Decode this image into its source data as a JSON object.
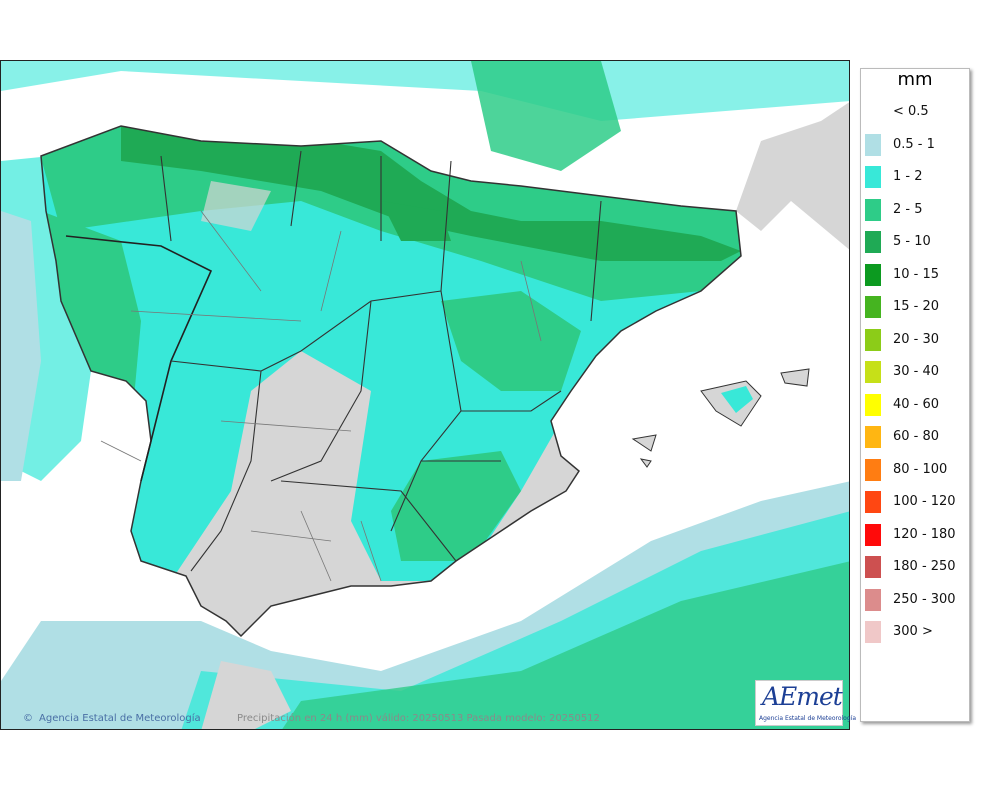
{
  "map": {
    "credit": "Agencia Estatal de Meteorología",
    "caption": "Precipitación en 24 h (mm) válido: 20250513 Pasada modelo: 20250512",
    "logo_text": "AEmet",
    "logo_subtext": "Agencia Estatal de Meteorología",
    "copyright_icon": "copyright-icon",
    "region": "Peninsula Iberica y Baleares",
    "colors": {
      "sea": "#ffffff",
      "land": "#d6d6d6",
      "border": "#333333"
    }
  },
  "legend": {
    "unit": "mm",
    "items": [
      {
        "label": "< 0.5",
        "color": "#ffffff"
      },
      {
        "label": "0.5 - 1",
        "color": "#b0dfe5"
      },
      {
        "label": "1 - 2",
        "color": "#38e8d8"
      },
      {
        "label": "2 - 5",
        "color": "#2ecc88"
      },
      {
        "label": "5 - 10",
        "color": "#1faa55"
      },
      {
        "label": "10 - 15",
        "color": "#0c9a20"
      },
      {
        "label": "15 - 20",
        "color": "#45b420"
      },
      {
        "label": "20 - 30",
        "color": "#8ccc18"
      },
      {
        "label": "30 - 40",
        "color": "#c6e018"
      },
      {
        "label": "40 - 60",
        "color": "#ffff00"
      },
      {
        "label": "60 - 80",
        "color": "#ffb612"
      },
      {
        "label": "80 - 100",
        "color": "#ff7d12"
      },
      {
        "label": "100 - 120",
        "color": "#ff4712"
      },
      {
        "label": "120 - 180",
        "color": "#ff0a0a"
      },
      {
        "label": "180 - 250",
        "color": "#cd5050"
      },
      {
        "label": "250 - 300",
        "color": "#dc8c8c"
      },
      {
        "label": "300 >",
        "color": "#f0c8c8"
      }
    ]
  }
}
